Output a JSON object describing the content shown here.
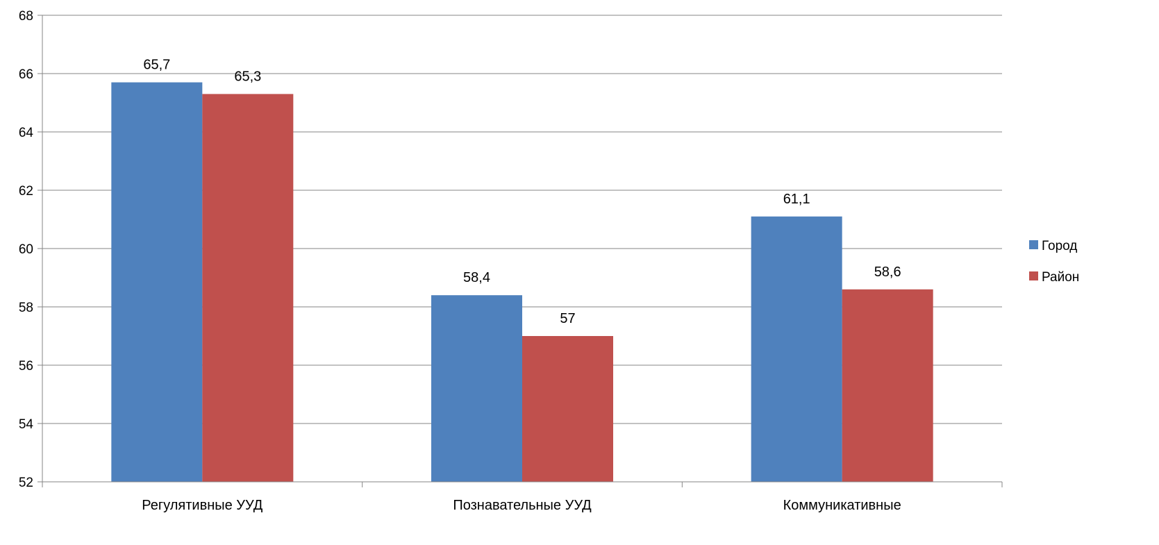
{
  "chart_data": {
    "type": "bar",
    "categories": [
      "Регулятивные УУД",
      "Познавательные УУД",
      "Коммуникативные"
    ],
    "series": [
      {
        "name": "Город",
        "values": [
          65.7,
          58.4,
          61.1
        ],
        "labels": [
          "65,7",
          "58,4",
          "61,1"
        ],
        "color": "#4F81BD"
      },
      {
        "name": "Район",
        "values": [
          65.3,
          57,
          58.6
        ],
        "labels": [
          "65,3",
          "57",
          "58,6"
        ],
        "color": "#C0504D"
      }
    ],
    "ylim": [
      52,
      68
    ],
    "yticks": [
      52,
      54,
      56,
      58,
      60,
      62,
      64,
      66,
      68
    ],
    "grid": true,
    "legend": "right",
    "title": "",
    "xlabel": "",
    "ylabel": ""
  }
}
